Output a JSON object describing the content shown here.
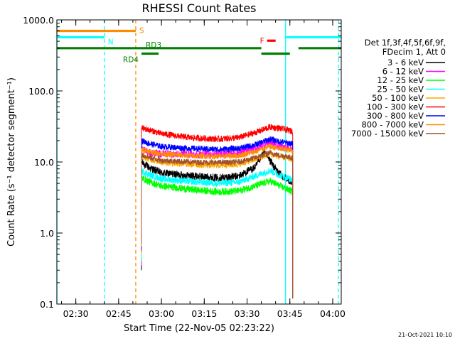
{
  "chart_data": {
    "type": "line",
    "title": "RHESSI Count Rates",
    "xlabel": "Start Time (22-Nov-05 02:23:22)",
    "ylabel": "Count Rate (s⁻¹ detector segment⁻¹)",
    "yscale": "log",
    "ylim": [
      0.1,
      1000.0
    ],
    "xlim": [
      "02:23:22",
      "04:03:00"
    ],
    "y_ticks": [
      "0.1",
      "1.0",
      "10.0",
      "100.0",
      "1000.0"
    ],
    "x_ticks": [
      "02:30",
      "02:45",
      "03:00",
      "03:15",
      "03:30",
      "03:45",
      "04:00"
    ],
    "legend_header": [
      "Det 1f,3f,4f,5f,6f,9f,",
      "FDecim 1, Att 0"
    ],
    "legend_placement": "right",
    "timestamp": "21-Oct-2021 10:10",
    "series": [
      {
        "name": "3 - 6 keV",
        "color": "#000000",
        "points": [
          [
            "02:53:00",
            10.0
          ],
          [
            "02:56:00",
            8.2
          ],
          [
            "03:00:00",
            7.0
          ],
          [
            "03:10:00",
            6.4
          ],
          [
            "03:20:00",
            6.0
          ],
          [
            "03:27:00",
            6.3
          ],
          [
            "03:33:00",
            8.5
          ],
          [
            "03:36:00",
            14.0
          ],
          [
            "03:38:00",
            10.5
          ],
          [
            "03:41:00",
            7.0
          ],
          [
            "03:46:00",
            5.0
          ]
        ]
      },
      {
        "name": "6 - 12 keV",
        "color": "#ff00ff",
        "points": [
          [
            "02:53:00",
            15.0
          ],
          [
            "02:56:00",
            13.5
          ],
          [
            "03:00:00",
            13.0
          ],
          [
            "03:10:00",
            12.8
          ],
          [
            "03:20:00",
            12.8
          ],
          [
            "03:27:00",
            13.4
          ],
          [
            "03:33:00",
            15.5
          ],
          [
            "03:38:00",
            19.0
          ],
          [
            "03:41:00",
            16.5
          ],
          [
            "03:46:00",
            15.5
          ]
        ]
      },
      {
        "name": "12 - 25 keV",
        "color": "#00ff00",
        "points": [
          [
            "02:53:00",
            6.0
          ],
          [
            "02:56:00",
            5.2
          ],
          [
            "03:00:00",
            4.6
          ],
          [
            "03:10:00",
            4.1
          ],
          [
            "03:20:00",
            3.8
          ],
          [
            "03:27:00",
            3.9
          ],
          [
            "03:33:00",
            4.6
          ],
          [
            "03:38:00",
            5.4
          ],
          [
            "03:41:00",
            4.7
          ],
          [
            "03:46:00",
            3.8
          ]
        ]
      },
      {
        "name": "25 - 50 keV",
        "color": "#00ffff",
        "points": [
          [
            "02:53:00",
            7.5
          ],
          [
            "02:56:00",
            6.6
          ],
          [
            "03:00:00",
            5.8
          ],
          [
            "03:10:00",
            5.3
          ],
          [
            "03:20:00",
            5.0
          ],
          [
            "03:27:00",
            5.2
          ],
          [
            "03:33:00",
            6.4
          ],
          [
            "03:38:00",
            7.6
          ],
          [
            "03:41:00",
            6.6
          ],
          [
            "03:46:00",
            5.6
          ]
        ]
      },
      {
        "name": "50 - 100 keV",
        "color": "#ffa500",
        "points": [
          [
            "02:53:00",
            12.0
          ],
          [
            "02:56:00",
            11.0
          ],
          [
            "03:00:00",
            10.0
          ],
          [
            "03:10:00",
            9.3
          ],
          [
            "03:20:00",
            9.0
          ],
          [
            "03:27:00",
            9.3
          ],
          [
            "03:33:00",
            11.0
          ],
          [
            "03:38:00",
            13.0
          ],
          [
            "03:41:00",
            12.0
          ],
          [
            "03:46:00",
            11.0
          ]
        ]
      },
      {
        "name": "100 - 300 keV",
        "color": "#ff0000",
        "points": [
          [
            "02:53:00",
            30.0
          ],
          [
            "02:56:00",
            28.0
          ],
          [
            "03:00:00",
            25.0
          ],
          [
            "03:10:00",
            22.0
          ],
          [
            "03:20:00",
            21.0
          ],
          [
            "03:27:00",
            22.0
          ],
          [
            "03:33:00",
            26.0
          ],
          [
            "03:38:00",
            31.0
          ],
          [
            "03:41:00",
            30.0
          ],
          [
            "03:46:00",
            27.0
          ]
        ]
      },
      {
        "name": "300 - 800 keV",
        "color": "#0000ff",
        "points": [
          [
            "02:53:00",
            20.0
          ],
          [
            "02:56:00",
            18.0
          ],
          [
            "03:00:00",
            16.5
          ],
          [
            "03:10:00",
            15.5
          ],
          [
            "03:20:00",
            15.0
          ],
          [
            "03:27:00",
            15.5
          ],
          [
            "03:33:00",
            17.5
          ],
          [
            "03:38:00",
            21.0
          ],
          [
            "03:41:00",
            19.5
          ],
          [
            "03:46:00",
            18.0
          ]
        ]
      },
      {
        "name": "800 - 7000 keV",
        "color": "#ff8c00",
        "points": [
          [
            "02:53:00",
            15.0
          ],
          [
            "02:56:00",
            14.0
          ],
          [
            "03:00:00",
            13.0
          ],
          [
            "03:10:00",
            12.2
          ],
          [
            "03:20:00",
            12.0
          ],
          [
            "03:27:00",
            12.3
          ],
          [
            "03:33:00",
            14.0
          ],
          [
            "03:38:00",
            16.5
          ],
          [
            "03:41:00",
            15.5
          ],
          [
            "03:46:00",
            14.5
          ]
        ]
      },
      {
        "name": "7000 - 15000 keV",
        "color": "#a0522d",
        "points": [
          [
            "02:53:00",
            12.5
          ],
          [
            "02:56:00",
            11.5
          ],
          [
            "03:00:00",
            10.5
          ],
          [
            "03:10:00",
            10.0
          ],
          [
            "03:20:00",
            9.8
          ],
          [
            "03:27:00",
            10.0
          ],
          [
            "03:33:00",
            11.5
          ],
          [
            "03:38:00",
            13.5
          ],
          [
            "03:41:00",
            12.5
          ],
          [
            "03:46:00",
            11.5
          ]
        ]
      }
    ],
    "flag_bars": [
      {
        "label": "S",
        "color": "#ff8c00",
        "y": 700,
        "segments": [
          [
            "02:23:22",
            "02:51:00"
          ]
        ]
      },
      {
        "label": "N",
        "color": "#00ffff",
        "y": 570,
        "segments": [
          [
            "02:23:22",
            "02:40:00"
          ],
          [
            "03:43:30",
            "04:03:00"
          ]
        ]
      },
      {
        "label": "RD3",
        "color": "#008000",
        "y": 400,
        "segments": [
          [
            "02:23:22",
            "03:35:00"
          ],
          [
            "03:48:00",
            "04:03:00"
          ]
        ]
      },
      {
        "label": "RD4",
        "color": "#008000",
        "y": 335,
        "segments": [
          [
            "02:53:00",
            "02:59:00"
          ],
          [
            "03:35:00",
            "03:45:00"
          ]
        ]
      },
      {
        "label": "F",
        "color": "#ff0000",
        "y": 510,
        "segments": [
          [
            "03:37:00",
            "03:40:00"
          ]
        ]
      }
    ],
    "markers": [
      {
        "time": "02:23:22",
        "color": "#00ffff",
        "style": "solid"
      },
      {
        "time": "02:40:00",
        "color": "#00ffff",
        "style": "dashed"
      },
      {
        "time": "02:51:00",
        "color": "#ff8c00",
        "style": "dashed"
      },
      {
        "time": "03:43:30",
        "color": "#00ffff",
        "style": "solid"
      },
      {
        "time": "04:02:00",
        "color": "#00ffff",
        "style": "dashed"
      }
    ]
  }
}
